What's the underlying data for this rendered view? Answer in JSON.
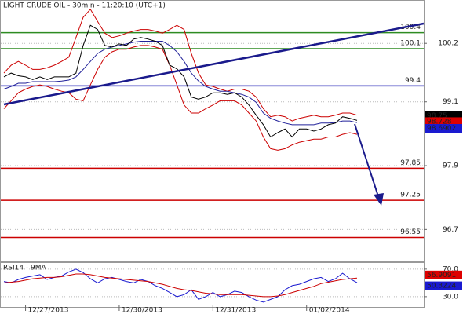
{
  "chart_data": [
    {
      "type": "line",
      "title": "LIGHT CRUDE OIL - 30min - 11:20:10 (UTC+1)",
      "categories": [
        null,
        null,
        null,
        "12/27/2013",
        null,
        null,
        null,
        null,
        null,
        null,
        null,
        null,
        null,
        null,
        null,
        null,
        "12/30/2013",
        null,
        null,
        null,
        null,
        null,
        null,
        null,
        null,
        null,
        null,
        null,
        null,
        "12/31/2013",
        null,
        null,
        null,
        null,
        null,
        null,
        null,
        null,
        null,
        null,
        null,
        null,
        "01/02/2014",
        null,
        null,
        null,
        null,
        null,
        null,
        null
      ],
      "series": [
        {
          "color": "#cc0000",
          "values": [
            99.64,
            99.79,
            99.86,
            99.79,
            99.71,
            99.71,
            99.74,
            99.79,
            99.86,
            99.94,
            100.31,
            100.69,
            100.84,
            100.61,
            100.39,
            100.31,
            100.34,
            100.39,
            100.43,
            100.46,
            100.46,
            100.43,
            100.39,
            100.46,
            100.54,
            100.46,
            100.01,
            99.64,
            99.42,
            99.39,
            99.34,
            99.3,
            99.34,
            99.34,
            99.3,
            99.19,
            98.97,
            98.82,
            98.85,
            98.82,
            98.74,
            98.79,
            98.82,
            98.85,
            98.82,
            98.82,
            98.85,
            98.89,
            98.89,
            98.85
          ]
        },
        {
          "color": "#cc0000",
          "values": [
            98.97,
            99.12,
            99.27,
            99.34,
            99.39,
            99.42,
            99.39,
            99.34,
            99.3,
            99.27,
            99.15,
            99.12,
            99.42,
            99.71,
            99.94,
            100.04,
            100.09,
            100.09,
            100.13,
            100.16,
            100.16,
            100.13,
            100.09,
            99.79,
            99.42,
            99.04,
            98.89,
            98.89,
            98.97,
            99.04,
            99.12,
            99.12,
            99.12,
            99.04,
            98.89,
            98.74,
            98.44,
            98.22,
            98.19,
            98.22,
            98.29,
            98.34,
            98.37,
            98.4,
            98.4,
            98.44,
            98.44,
            98.49,
            98.52,
            98.49
          ]
        },
        {
          "color": "#22229a",
          "values": [
            99.34,
            99.39,
            99.45,
            99.45,
            99.48,
            99.48,
            99.48,
            99.48,
            99.49,
            99.51,
            99.57,
            99.71,
            99.86,
            100.01,
            100.09,
            100.13,
            100.16,
            100.19,
            100.22,
            100.24,
            100.24,
            100.24,
            100.24,
            100.16,
            100.04,
            99.86,
            99.64,
            99.49,
            99.39,
            99.34,
            99.3,
            99.3,
            99.27,
            99.24,
            99.19,
            99.09,
            98.89,
            98.79,
            98.74,
            98.7,
            98.67,
            98.67,
            98.67,
            98.67,
            98.7,
            98.7,
            98.71,
            98.74,
            98.74,
            98.71
          ]
        },
        {
          "color": "#000000",
          "values": [
            99.57,
            99.64,
            99.59,
            99.57,
            99.52,
            99.57,
            99.52,
            99.57,
            99.57,
            99.57,
            99.64,
            100.16,
            100.54,
            100.46,
            100.16,
            100.13,
            100.19,
            100.16,
            100.28,
            100.31,
            100.28,
            100.24,
            100.16,
            99.79,
            99.72,
            99.57,
            99.19,
            99.15,
            99.19,
            99.27,
            99.27,
            99.24,
            99.27,
            99.19,
            99.04,
            98.85,
            98.67,
            98.44,
            98.52,
            98.59,
            98.44,
            98.59,
            98.59,
            98.55,
            98.59,
            98.67,
            98.7,
            98.82,
            98.79,
            98.75
          ]
        }
      ],
      "ylim": [
        96.1,
        101.0
      ],
      "yticks": [
        100.2,
        99.1,
        97.9,
        96.7
      ],
      "levels": [
        {
          "value": 100.4,
          "color": "#2e8b22"
        },
        {
          "value": 100.1,
          "color": "#2e8b22"
        },
        {
          "value": 99.4,
          "color": "#1010b0"
        },
        {
          "value": 97.85,
          "color": "#cc0000"
        },
        {
          "value": 97.25,
          "color": "#cc0000"
        },
        {
          "value": 96.55,
          "color": "#cc0000"
        }
      ],
      "price_tags": [
        {
          "value": 98.75,
          "color": "#000000"
        },
        {
          "value": 98.728,
          "color": "#dd0000"
        },
        {
          "value": 98.6902,
          "color": "#1a1ad0"
        }
      ]
    },
    {
      "type": "line",
      "title": "RSI14 - 9MA",
      "series": [
        {
          "color": "#1a1ad0",
          "values": [
            52,
            50,
            55,
            58,
            60,
            62,
            55,
            58,
            60,
            66,
            70,
            65,
            56,
            50,
            56,
            58,
            55,
            52,
            50,
            55,
            52,
            46,
            42,
            36,
            30,
            33,
            40,
            26,
            30,
            36,
            30,
            33,
            38,
            36,
            30,
            25,
            22,
            26,
            30,
            40,
            46,
            48,
            52,
            56,
            58,
            52,
            56,
            64,
            56,
            50.32
          ]
        },
        {
          "color": "#cc0000",
          "values": [
            50,
            51,
            52,
            54,
            56,
            57,
            58,
            58,
            59,
            61,
            63,
            63,
            62,
            60,
            58,
            57,
            56,
            55,
            54,
            53,
            52,
            50,
            48,
            45,
            42,
            40,
            39,
            37,
            35,
            34,
            33,
            33,
            33,
            33,
            32,
            31,
            30,
            30,
            31,
            33,
            36,
            39,
            42,
            45,
            49,
            51,
            53,
            55,
            56,
            56.91
          ]
        }
      ],
      "ylim": [
        15,
        79
      ],
      "yticks": [
        {
          "value": 70,
          "label": "70.0"
        },
        {
          "value": 30,
          "label": "30.0"
        }
      ],
      "value_tags": [
        {
          "value": 56.9091,
          "color": "#dd0000"
        },
        {
          "value": 50.3224,
          "color": "#1a1ad0"
        }
      ]
    }
  ]
}
